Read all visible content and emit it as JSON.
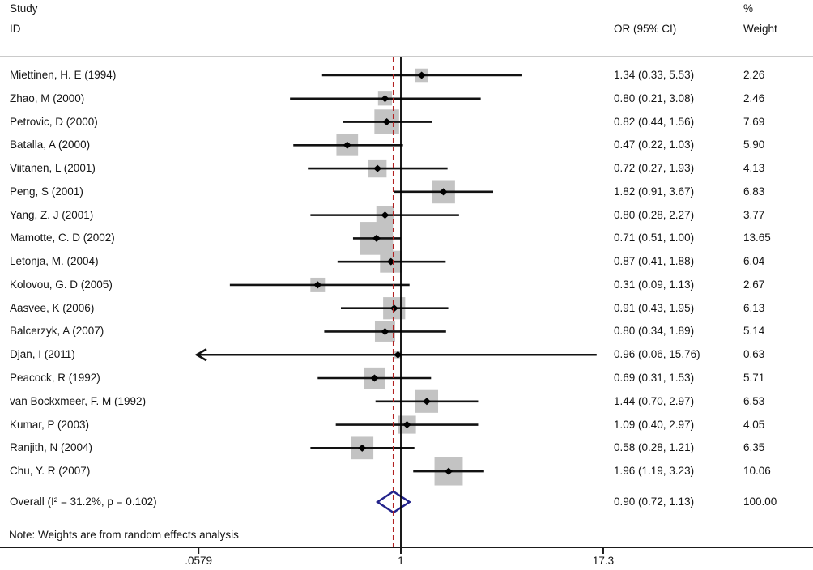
{
  "header": {
    "study_line1": "Study",
    "study_line2": "ID",
    "or_col": "OR (95% CI)",
    "weight_line1": "%",
    "weight_line2": "Weight"
  },
  "note": "Note: Weights are from random effects analysis",
  "colors": {
    "weight_square": "#c3c3c3",
    "ci_line": "#121212",
    "marker": "#000000",
    "overall_diamond": "#23238b",
    "null_line": "#000000",
    "dashed_line": "#b22222",
    "separator": "#b8b8b8",
    "axis": "#1a1a1a"
  },
  "chart_data": {
    "type": "forest",
    "x_scale": "log10",
    "x_axis_ticks": [
      {
        "label": ".0579",
        "value": 0.0579
      },
      {
        "label": "1",
        "value": 1
      },
      {
        "label": "17.3",
        "value": 17.3
      }
    ],
    "null_line_value": 1,
    "overall_dashed_value": 0.9,
    "studies": [
      {
        "name": "Miettinen, H. E (1994)",
        "or": 1.34,
        "lo": 0.33,
        "hi": 5.53,
        "weight": 2.26,
        "or_label": "1.34 (0.33, 5.53)",
        "weight_label": "2.26"
      },
      {
        "name": "Zhao, M (2000)",
        "or": 0.8,
        "lo": 0.21,
        "hi": 3.08,
        "weight": 2.46,
        "or_label": "0.80 (0.21, 3.08)",
        "weight_label": "2.46"
      },
      {
        "name": "Petrovic, D (2000)",
        "or": 0.82,
        "lo": 0.44,
        "hi": 1.56,
        "weight": 7.69,
        "or_label": "0.82 (0.44, 1.56)",
        "weight_label": "7.69"
      },
      {
        "name": "Batalla, A (2000)",
        "or": 0.47,
        "lo": 0.22,
        "hi": 1.03,
        "weight": 5.9,
        "or_label": "0.47 (0.22, 1.03)",
        "weight_label": "5.90"
      },
      {
        "name": "Viitanen, L (2001)",
        "or": 0.72,
        "lo": 0.27,
        "hi": 1.93,
        "weight": 4.13,
        "or_label": "0.72 (0.27, 1.93)",
        "weight_label": "4.13"
      },
      {
        "name": "Peng, S (2001)",
        "or": 1.82,
        "lo": 0.91,
        "hi": 3.67,
        "weight": 6.83,
        "or_label": "1.82 (0.91, 3.67)",
        "weight_label": "6.83"
      },
      {
        "name": "Yang, Z. J (2001)",
        "or": 0.8,
        "lo": 0.28,
        "hi": 2.27,
        "weight": 3.77,
        "or_label": "0.80 (0.28, 2.27)",
        "weight_label": "3.77"
      },
      {
        "name": "Mamotte, C. D (2002)",
        "or": 0.71,
        "lo": 0.51,
        "hi": 1.0,
        "weight": 13.65,
        "or_label": "0.71 (0.51, 1.00)",
        "weight_label": "13.65"
      },
      {
        "name": "Letonja, M. (2004)",
        "or": 0.87,
        "lo": 0.41,
        "hi": 1.88,
        "weight": 6.04,
        "or_label": "0.87 (0.41, 1.88)",
        "weight_label": "6.04"
      },
      {
        "name": "Kolovou, G. D (2005)",
        "or": 0.31,
        "lo": 0.09,
        "hi": 1.13,
        "weight": 2.67,
        "or_label": "0.31 (0.09, 1.13)",
        "weight_label": "2.67"
      },
      {
        "name": "Aasvee, K (2006)",
        "or": 0.91,
        "lo": 0.43,
        "hi": 1.95,
        "weight": 6.13,
        "or_label": "0.91 (0.43, 1.95)",
        "weight_label": "6.13"
      },
      {
        "name": "Balcerzyk, A (2007)",
        "or": 0.8,
        "lo": 0.34,
        "hi": 1.89,
        "weight": 5.14,
        "or_label": "0.80 (0.34, 1.89)",
        "weight_label": "5.14"
      },
      {
        "name": "Djan, I (2011)",
        "or": 0.96,
        "lo": 0.06,
        "hi": 15.76,
        "weight": 0.63,
        "or_label": "0.96 (0.06, 15.76)",
        "weight_label": "0.63",
        "arrow_low": true
      },
      {
        "name": "Peacock, R (1992)",
        "or": 0.69,
        "lo": 0.31,
        "hi": 1.53,
        "weight": 5.71,
        "or_label": "0.69 (0.31, 1.53)",
        "weight_label": "5.71"
      },
      {
        "name": "van Bockxmeer, F. M (1992)",
        "or": 1.44,
        "lo": 0.7,
        "hi": 2.97,
        "weight": 6.53,
        "or_label": "1.44 (0.70, 2.97)",
        "weight_label": "6.53"
      },
      {
        "name": "Kumar, P (2003)",
        "or": 1.09,
        "lo": 0.4,
        "hi": 2.97,
        "weight": 4.05,
        "or_label": "1.09 (0.40, 2.97)",
        "weight_label": "4.05"
      },
      {
        "name": "Ranjith, N (2004)",
        "or": 0.58,
        "lo": 0.28,
        "hi": 1.21,
        "weight": 6.35,
        "or_label": "0.58 (0.28, 1.21)",
        "weight_label": "6.35"
      },
      {
        "name": "Chu, Y. R (2007)",
        "or": 1.96,
        "lo": 1.19,
        "hi": 3.23,
        "weight": 10.06,
        "or_label": "1.96 (1.19, 3.23)",
        "weight_label": "10.06"
      }
    ],
    "overall": {
      "label": "Overall  (I² = 31.2%, p = 0.102)",
      "or": 0.9,
      "lo": 0.72,
      "hi": 1.13,
      "or_label": "0.90 (0.72, 1.13)",
      "weight_label": "100.00"
    }
  }
}
